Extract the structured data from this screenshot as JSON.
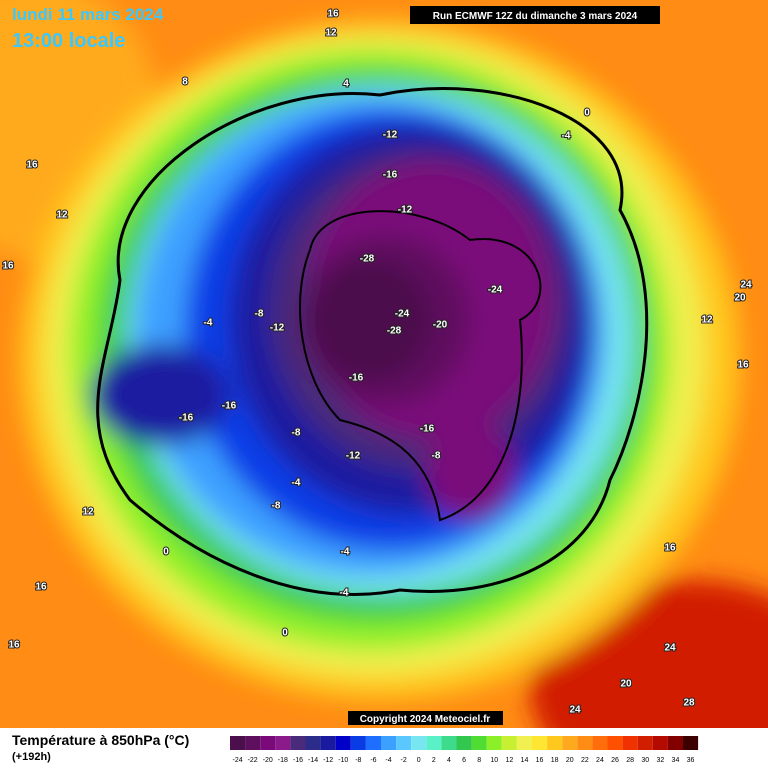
{
  "header": {
    "date": "lundi 11 mars 2024",
    "time": "13:00 locale",
    "run": "Run ECMWF 12Z du dimanche 3 mars 2024"
  },
  "map": {
    "contour_labels": [
      "-28",
      "-24",
      "-28",
      "-20",
      "-24",
      "-12",
      "-16",
      "-12",
      "-16",
      "-16",
      "-12",
      "-8",
      "-8",
      "-16",
      "-16",
      "-8",
      "-12",
      "-4",
      "-4",
      "-8",
      "-4",
      "-4",
      "0",
      "0",
      "0",
      "-4",
      "16",
      "12",
      "16",
      "8",
      "24",
      "20",
      "28",
      "24",
      "24",
      "20",
      "12",
      "16",
      "16",
      "16",
      "12",
      "16",
      "12",
      "16",
      "4"
    ]
  },
  "footer": {
    "copyright": "Copyright 2024 Meteociel.fr",
    "title": "Température à 850hPa (°C)",
    "lead": "(+192h)"
  },
  "legend": {
    "ticks": [
      -24,
      -22,
      -20,
      -18,
      -16,
      -14,
      -12,
      -10,
      -8,
      -6,
      -4,
      -2,
      0,
      2,
      4,
      6,
      8,
      10,
      12,
      14,
      16,
      18,
      20,
      22,
      24,
      26,
      28,
      30,
      32,
      34,
      36
    ],
    "colors": [
      "#4b0f4b",
      "#5e0f5e",
      "#7a0a7a",
      "#8b1a8b",
      "#4a2a7a",
      "#2c2c8a",
      "#1a1aa0",
      "#0000c8",
      "#0a3ce6",
      "#1e6eff",
      "#3ca0ff",
      "#5ac8ff",
      "#78e6f0",
      "#5af0c8",
      "#3cdc8c",
      "#32c850",
      "#50dc32",
      "#8cf028",
      "#c8f032",
      "#f0f050",
      "#ffe632",
      "#ffc81e",
      "#ffaa1e",
      "#ff8c14",
      "#ff6e0a",
      "#ff5000",
      "#f03200",
      "#d21e00",
      "#b40a00",
      "#820000",
      "#3c0000"
    ]
  }
}
